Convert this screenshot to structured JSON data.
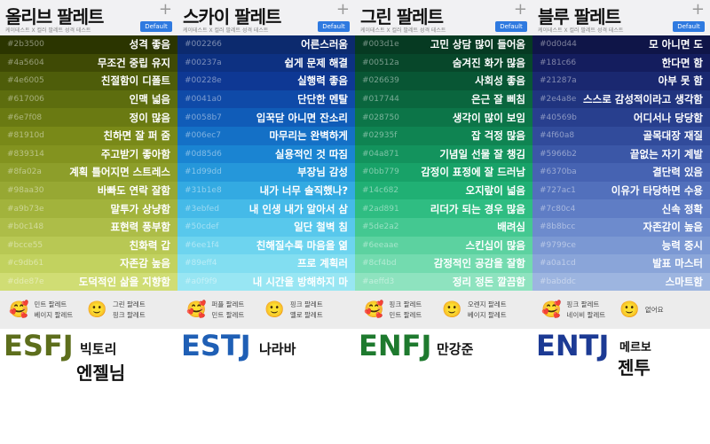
{
  "button_default": "Default",
  "subtitle": "케이테스트 X 컬러 팔레트 성격 테스트",
  "columns": [
    {
      "title": "올리브 팔레트",
      "mbti": "ESFJ",
      "mbti_color": "#5d6e1c",
      "name1": "빅토리",
      "name2": "엔젤님",
      "rows": [
        [
          "#2b3500",
          "성격 좋음"
        ],
        [
          "#4a5604",
          "무조건 중립 유지"
        ],
        [
          "#4e6005",
          "친절함이 디폴트"
        ],
        [
          "#617006",
          "인맥 넓음"
        ],
        [
          "#6e7f08",
          "정이 많음"
        ],
        [
          "#81910d",
          "친하면 잘 퍼 줌"
        ],
        [
          "#839314",
          "주고받기 좋아함"
        ],
        [
          "#8fa02a",
          "계획 틀어지면 스트레스"
        ],
        [
          "#98aa30",
          "바빠도 연락 잘함"
        ],
        [
          "#a9b73e",
          "말투가 상냥함"
        ],
        [
          "#b0c148",
          "표현력 풍부함"
        ],
        [
          "#bcce55",
          "친화력 갑"
        ],
        [
          "#c9db61",
          "자존감 높음"
        ],
        [
          "#dde87e",
          "도덕적인 삶을 지향함"
        ]
      ],
      "rec": {
        "good": [
          "민트 팔레트",
          "베이지 팔레트"
        ],
        "ok": [
          "그린 팔레트",
          "핑크 팔레트"
        ]
      }
    },
    {
      "title": "스카이 팔레트",
      "mbti": "ESTJ",
      "mbti_color": "#1f5fb5",
      "name1": "나라바",
      "name2": "",
      "rows": [
        [
          "#002266",
          "어른스러움"
        ],
        [
          "#00237a",
          "쉽게 문제 해결"
        ],
        [
          "#00228e",
          "실행력 좋음"
        ],
        [
          "#0041a0",
          "단단한 멘탈"
        ],
        [
          "#0058b7",
          "입꾹닫 아니면 잔소리"
        ],
        [
          "#006ec7",
          "마무리는 완벽하게"
        ],
        [
          "#0d85d6",
          "실용적인 것 따짐"
        ],
        [
          "#1d99dd",
          "부장님 감성"
        ],
        [
          "#31b1e8",
          "내가 너무 솔직했나?"
        ],
        [
          "#3ebfed",
          "내 인생 내가 알아서 삼"
        ],
        [
          "#50cdef",
          "일단 철벽 침"
        ],
        [
          "#6ee1f4",
          "친해질수록 마음을 엶"
        ],
        [
          "#89eff4",
          "프로 계획러"
        ],
        [
          "#a0f9f9",
          "내 시간을 방해하지 마"
        ]
      ],
      "rec": {
        "good": [
          "퍼플 팔레트",
          "민트 팔레트"
        ],
        "ok": [
          "핑크 팔레트",
          "옐로 팔레트"
        ]
      }
    },
    {
      "title": "그린 팔레트",
      "mbti": "ENFJ",
      "mbti_color": "#1e7a2e",
      "name1": "만강준",
      "name2": "",
      "rows": [
        [
          "#003d1e",
          "고민 상담 많이 들어옴"
        ],
        [
          "#00512a",
          "숨겨진 화가 많음"
        ],
        [
          "#026639",
          "사회성 좋음"
        ],
        [
          "#017744",
          "은근 잘 삐침"
        ],
        [
          "#028750",
          "생각이 많이 보임"
        ],
        [
          "#02935f",
          "잡 걱정 많음"
        ],
        [
          "#04a871",
          "기념일 선물 잘 챙김"
        ],
        [
          "#0bb779",
          "감정이 표정에 잘 드러남"
        ],
        [
          "#14c682",
          "오지랖이 넓음"
        ],
        [
          "#2ad891",
          "리더가 되는 경우 많음"
        ],
        [
          "#5de2a2",
          "배려심"
        ],
        [
          "#6eeaae",
          "스킨십이 많음"
        ],
        [
          "#8cf4bd",
          "감정적인 공감을 잘함"
        ],
        [
          "#aeffd3",
          "정리 정돈 깔끔함"
        ]
      ],
      "rec": {
        "good": [
          "핑크 팔레트",
          "민트 팔레트"
        ],
        "ok": [
          "오렌지 팔레트",
          "베이지 팔레트"
        ]
      }
    },
    {
      "title": "블루 팔레트",
      "mbti": "ENTJ",
      "mbti_color": "#1c3a94",
      "name1": "메르보",
      "name2": "젠투",
      "rows": [
        [
          "#0d0d44",
          "모 아니면 도"
        ],
        [
          "#181c66",
          "한다면 함"
        ],
        [
          "#21287a",
          "아부 못 함"
        ],
        [
          "#2e4a8e",
          "스스로 감성적이라고 생각함"
        ],
        [
          "#40569b",
          "어디서나 당당함"
        ],
        [
          "#4f60a8",
          "골목대장 재질"
        ],
        [
          "#5966b2",
          "끝없는 자기 계발"
        ],
        [
          "#6370ba",
          "결단력 있음"
        ],
        [
          "#727ac1",
          "이유가 타당하면 수용"
        ],
        [
          "#7c80c4",
          "신속 정확"
        ],
        [
          "#8b8bcc",
          "자존감이 높음"
        ],
        [
          "#9799ce",
          "능력 중시"
        ],
        [
          "#a0a1cd",
          "발표 마스터"
        ],
        [
          "#babddc",
          "스마트함"
        ]
      ],
      "rec": {
        "good": [
          "핑크 팔레트",
          "네이비 팔레트"
        ],
        "ok": [
          "없어요"
        ]
      }
    }
  ],
  "icons": {
    "good": "smiling-face-with-hearts-icon",
    "ok": "smiling-face-icon",
    "plus": "plus-icon"
  }
}
